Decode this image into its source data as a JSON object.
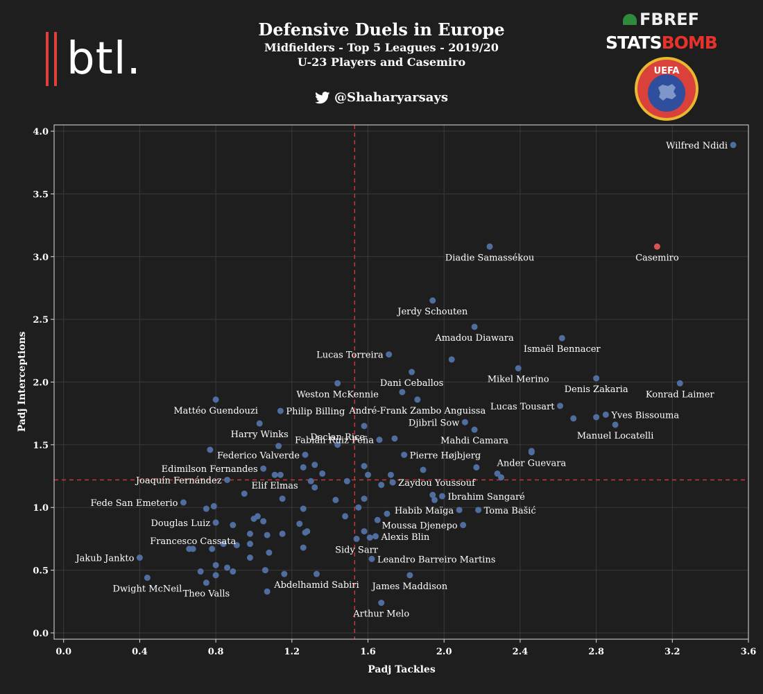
{
  "header": {
    "title": "Defensive Duels in Europe",
    "subtitle1": "Midfielders - Top 5 Leagues - 2019/20",
    "subtitle2": "U-23 Players and Casemiro",
    "handle": "@Shaharyarsays",
    "logos": {
      "btl": "btl.",
      "fbref": "FBREF",
      "statsbomb_1": "STATS",
      "statsbomb_2": "BOMB",
      "uefa": "UEFA"
    },
    "icons": {
      "twitter": "twitter-bird-icon"
    }
  },
  "colors": {
    "background": "#1e1e1e",
    "point": "#4f6d9e",
    "highlight": "#d9534f",
    "reference_line": "#c9373a",
    "grid": "#3a3a3a",
    "frame": "#dddddd"
  },
  "chart_data": {
    "type": "scatter",
    "title": "Defensive Duels in Europe",
    "xlabel": "Padj Tackles",
    "ylabel": "Padj Interceptions",
    "xlim": [
      -0.05,
      3.6
    ],
    "ylim": [
      -0.05,
      4.05
    ],
    "xticks": [
      "0.0",
      "0.4",
      "0.8",
      "1.2",
      "1.6",
      "2.0",
      "2.4",
      "2.8",
      "3.2",
      "3.6"
    ],
    "yticks": [
      "0.0",
      "0.5",
      "1.0",
      "1.5",
      "2.0",
      "2.5",
      "3.0",
      "3.5",
      "4.0"
    ],
    "reference_lines": {
      "x": 1.53,
      "y": 1.22
    },
    "grid": true,
    "labeled_points": [
      {
        "label": "Wilfred Ndidi",
        "x": 3.52,
        "y": 3.89,
        "highlight": false,
        "anchor": "end",
        "dx": -8,
        "dy": 5
      },
      {
        "label": "Casemiro",
        "x": 3.12,
        "y": 3.08,
        "highlight": true,
        "anchor": "middle",
        "dx": 0,
        "dy": 20
      },
      {
        "label": "Diadie Samassékou",
        "x": 2.24,
        "y": 3.08,
        "highlight": false,
        "anchor": "middle",
        "dx": 0,
        "dy": 20
      },
      {
        "label": "Jerdy Schouten",
        "x": 1.94,
        "y": 2.65,
        "highlight": false,
        "anchor": "middle",
        "dx": 0,
        "dy": 20
      },
      {
        "label": "Amadou Diawara",
        "x": 2.16,
        "y": 2.44,
        "highlight": false,
        "anchor": "middle",
        "dx": 0,
        "dy": 20
      },
      {
        "label": "Ismaël Bennacer",
        "x": 2.62,
        "y": 2.35,
        "highlight": false,
        "anchor": "middle",
        "dx": 0,
        "dy": 20
      },
      {
        "label": "Lucas Torreira",
        "x": 1.71,
        "y": 2.22,
        "highlight": false,
        "anchor": "end",
        "dx": -8,
        "dy": 5
      },
      {
        "label": "Mikel Merino",
        "x": 2.39,
        "y": 2.11,
        "highlight": false,
        "anchor": "middle",
        "dx": 0,
        "dy": 20
      },
      {
        "label": "Denis Zakaria",
        "x": 2.8,
        "y": 2.03,
        "highlight": false,
        "anchor": "middle",
        "dx": 0,
        "dy": 20
      },
      {
        "label": "Konrad Laimer",
        "x": 3.24,
        "y": 1.99,
        "highlight": false,
        "anchor": "middle",
        "dx": 0,
        "dy": 20
      },
      {
        "label": "Dani Ceballos",
        "x": 1.83,
        "y": 2.08,
        "highlight": false,
        "anchor": "middle",
        "dx": 0,
        "dy": 20
      },
      {
        "label": "Weston McKennie",
        "x": 1.44,
        "y": 1.99,
        "highlight": false,
        "anchor": "middle",
        "dx": 0,
        "dy": 20
      },
      {
        "label": "Lucas Tousart",
        "x": 2.61,
        "y": 1.81,
        "highlight": false,
        "anchor": "end",
        "dx": -8,
        "dy": 5
      },
      {
        "label": "Mattéo Guendouzi",
        "x": 0.8,
        "y": 1.86,
        "highlight": false,
        "anchor": "middle",
        "dx": 0,
        "dy": 20
      },
      {
        "label": "Philip Billing",
        "x": 1.14,
        "y": 1.77,
        "highlight": false,
        "anchor": "start",
        "dx": 8,
        "dy": 5
      },
      {
        "label": "André-Frank Zambo Anguissa",
        "x": 1.86,
        "y": 1.86,
        "highlight": false,
        "anchor": "middle",
        "dx": 0,
        "dy": 20
      },
      {
        "label": "Yves Bissouma",
        "x": 2.85,
        "y": 1.74,
        "highlight": false,
        "anchor": "start",
        "dx": 8,
        "dy": 5
      },
      {
        "label": "Djibril Sow",
        "x": 2.11,
        "y": 1.68,
        "highlight": false,
        "anchor": "end",
        "dx": -8,
        "dy": 5
      },
      {
        "label": "Manuel Locatelli",
        "x": 2.9,
        "y": 1.66,
        "highlight": false,
        "anchor": "middle",
        "dx": 0,
        "dy": 20
      },
      {
        "label": "Harry Winks",
        "x": 1.03,
        "y": 1.67,
        "highlight": false,
        "anchor": "middle",
        "dx": 0,
        "dy": 20
      },
      {
        "label": "Mahdi Camara",
        "x": 2.16,
        "y": 1.62,
        "highlight": false,
        "anchor": "middle",
        "dx": 0,
        "dy": 20
      },
      {
        "label": "Fabián Ruiz Peña",
        "x": 1.66,
        "y": 1.54,
        "highlight": false,
        "anchor": "end",
        "dx": -8,
        "dy": 5
      },
      {
        "label": "Declan Rice",
        "x": 1.44,
        "y": 1.5,
        "highlight": false,
        "anchor": "middle",
        "dx": 0,
        "dy": -7
      },
      {
        "label": "Pierre Højbjerg",
        "x": 1.79,
        "y": 1.42,
        "highlight": false,
        "anchor": "start",
        "dx": 8,
        "dy": 5
      },
      {
        "label": "Federico Valverde",
        "x": 1.27,
        "y": 1.42,
        "highlight": false,
        "anchor": "end",
        "dx": -8,
        "dy": 5
      },
      {
        "label": "Ander Guevara",
        "x": 2.46,
        "y": 1.44,
        "highlight": false,
        "anchor": "middle",
        "dx": 0,
        "dy": 20
      },
      {
        "label": "Edimilson Fernandes",
        "x": 1.05,
        "y": 1.31,
        "highlight": false,
        "anchor": "end",
        "dx": -8,
        "dy": 5
      },
      {
        "label": "Joaquín Fernández",
        "x": 0.86,
        "y": 1.22,
        "highlight": false,
        "anchor": "end",
        "dx": -8,
        "dy": 5
      },
      {
        "label": "Zaydou Youssouf",
        "x": 1.73,
        "y": 1.2,
        "highlight": false,
        "anchor": "start",
        "dx": 8,
        "dy": 5
      },
      {
        "label": "Elif Elmas",
        "x": 1.11,
        "y": 1.26,
        "highlight": false,
        "anchor": "middle",
        "dx": 0,
        "dy": 20
      },
      {
        "label": "Ibrahim Sangaré",
        "x": 1.99,
        "y": 1.09,
        "highlight": false,
        "anchor": "start",
        "dx": 8,
        "dy": 5
      },
      {
        "label": "Fede San Emeterio",
        "x": 0.63,
        "y": 1.04,
        "highlight": false,
        "anchor": "end",
        "dx": -8,
        "dy": 5
      },
      {
        "label": "Habib Maïga",
        "x": 2.08,
        "y": 0.98,
        "highlight": false,
        "anchor": "end",
        "dx": -8,
        "dy": 5
      },
      {
        "label": "Toma Bašić",
        "x": 2.18,
        "y": 0.98,
        "highlight": false,
        "anchor": "start",
        "dx": 8,
        "dy": 5
      },
      {
        "label": "Douglas Luiz",
        "x": 0.8,
        "y": 0.88,
        "highlight": false,
        "anchor": "end",
        "dx": -8,
        "dy": 5
      },
      {
        "label": "Moussa Djenepo",
        "x": 2.1,
        "y": 0.86,
        "highlight": false,
        "anchor": "end",
        "dx": -8,
        "dy": 5
      },
      {
        "label": "Alexis Blin",
        "x": 1.64,
        "y": 0.77,
        "highlight": false,
        "anchor": "start",
        "dx": 8,
        "dy": 5
      },
      {
        "label": "Francesco Cassata",
        "x": 0.68,
        "y": 0.67,
        "highlight": false,
        "anchor": "middle",
        "dx": 0,
        "dy": -7
      },
      {
        "label": "Sidy Sarr",
        "x": 1.54,
        "y": 0.75,
        "highlight": false,
        "anchor": "middle",
        "dx": 0,
        "dy": 20
      },
      {
        "label": "Jakub Jankto",
        "x": 0.4,
        "y": 0.6,
        "highlight": false,
        "anchor": "end",
        "dx": -8,
        "dy": 5
      },
      {
        "label": "Leandro Barreiro Martins",
        "x": 1.62,
        "y": 0.59,
        "highlight": false,
        "anchor": "start",
        "dx": 8,
        "dy": 5
      },
      {
        "label": "Abdelhamid Sabiri",
        "x": 1.33,
        "y": 0.47,
        "highlight": false,
        "anchor": "middle",
        "dx": 0,
        "dy": 20
      },
      {
        "label": "James Maddison",
        "x": 1.82,
        "y": 0.46,
        "highlight": false,
        "anchor": "middle",
        "dx": 0,
        "dy": 20
      },
      {
        "label": "Dwight McNeil",
        "x": 0.44,
        "y": 0.44,
        "highlight": false,
        "anchor": "middle",
        "dx": 0,
        "dy": 20
      },
      {
        "label": "Theo Valls",
        "x": 0.75,
        "y": 0.4,
        "highlight": false,
        "anchor": "middle",
        "dx": 0,
        "dy": 20
      },
      {
        "label": "Arthur Melo",
        "x": 1.67,
        "y": 0.24,
        "highlight": false,
        "anchor": "middle",
        "dx": 0,
        "dy": 20
      }
    ],
    "unlabeled_points": [
      [
        2.04,
        2.18
      ],
      [
        1.58,
        1.65
      ],
      [
        1.74,
        1.55
      ],
      [
        1.78,
        1.92
      ],
      [
        2.68,
        1.71
      ],
      [
        2.8,
        1.72
      ],
      [
        2.46,
        1.45
      ],
      [
        2.17,
        1.32
      ],
      [
        2.28,
        1.27
      ],
      [
        2.3,
        1.24
      ],
      [
        1.89,
        1.3
      ],
      [
        1.72,
        1.26
      ],
      [
        1.67,
        1.18
      ],
      [
        1.6,
        1.26
      ],
      [
        1.58,
        1.33
      ],
      [
        1.49,
        1.21
      ],
      [
        1.36,
        1.27
      ],
      [
        1.32,
        1.34
      ],
      [
        1.26,
        1.32
      ],
      [
        1.14,
        1.26
      ],
      [
        1.3,
        1.21
      ],
      [
        1.32,
        1.16
      ],
      [
        1.15,
        1.07
      ],
      [
        1.43,
        1.06
      ],
      [
        1.58,
        1.07
      ],
      [
        1.55,
        1.0
      ],
      [
        1.94,
        1.1
      ],
      [
        1.95,
        1.06
      ],
      [
        1.48,
        0.93
      ],
      [
        1.65,
        0.9
      ],
      [
        1.7,
        0.95
      ],
      [
        1.58,
        0.81
      ],
      [
        1.61,
        0.76
      ],
      [
        1.26,
        0.99
      ],
      [
        1.24,
        0.87
      ],
      [
        1.28,
        0.81
      ],
      [
        1.27,
        0.8
      ],
      [
        1.26,
        0.68
      ],
      [
        1.15,
        0.79
      ],
      [
        1.07,
        0.78
      ],
      [
        0.98,
        0.79
      ],
      [
        0.98,
        0.71
      ],
      [
        1.0,
        0.91
      ],
      [
        1.02,
        0.93
      ],
      [
        1.05,
        0.89
      ],
      [
        0.89,
        0.86
      ],
      [
        0.95,
        1.11
      ],
      [
        0.79,
        1.01
      ],
      [
        0.75,
        0.99
      ],
      [
        0.78,
        0.67
      ],
      [
        0.84,
        0.71
      ],
      [
        0.91,
        0.7
      ],
      [
        0.98,
        0.6
      ],
      [
        1.08,
        0.64
      ],
      [
        0.8,
        0.54
      ],
      [
        0.86,
        0.52
      ],
      [
        0.89,
        0.49
      ],
      [
        0.8,
        0.46
      ],
      [
        0.72,
        0.49
      ],
      [
        0.66,
        0.67
      ],
      [
        1.06,
        0.5
      ],
      [
        1.16,
        0.47
      ],
      [
        1.07,
        0.33
      ],
      [
        0.77,
        1.46
      ],
      [
        1.13,
        1.49
      ]
    ]
  }
}
